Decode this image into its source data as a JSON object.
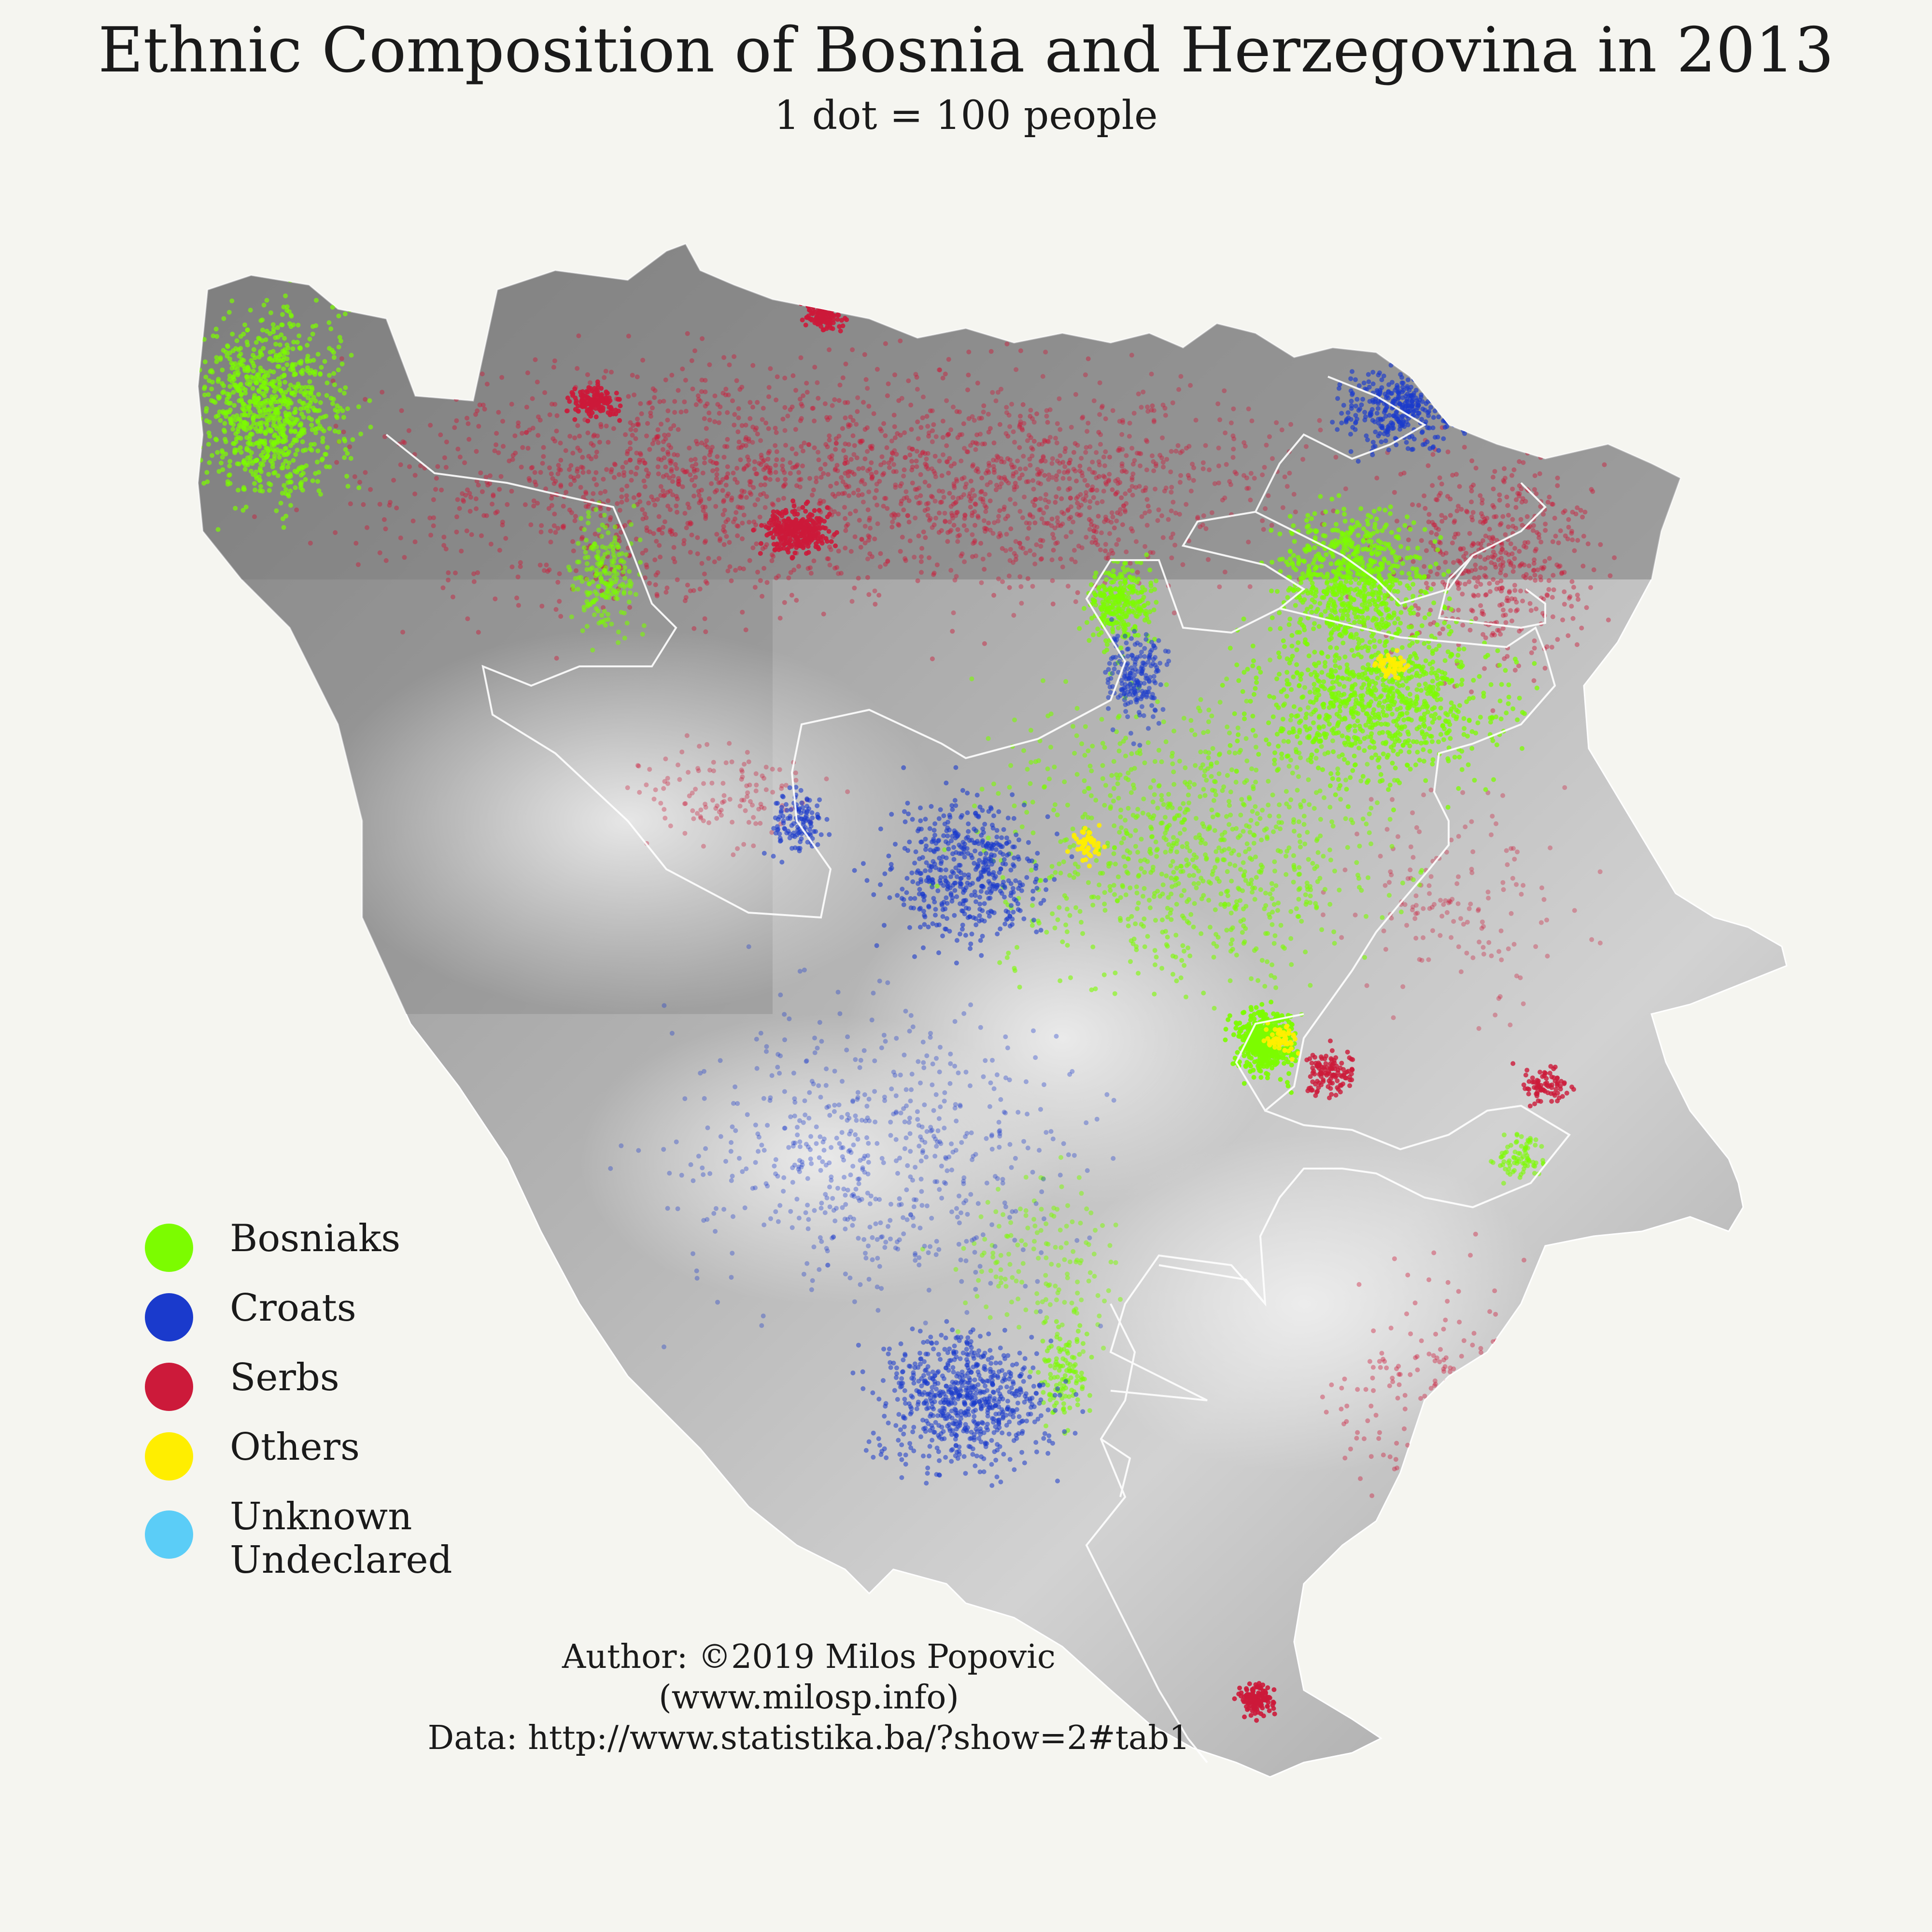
{
  "title": "Ethnic Composition of Bosnia and Herzegovina in 2013",
  "subtitle": "1 dot = 100 people",
  "legend": {
    "items": [
      {
        "label": "Bosniaks",
        "color": "#7cfc00"
      },
      {
        "label": "Croats",
        "color": "#1a3acc"
      },
      {
        "label": "Serbs",
        "color": "#cc1a3a"
      },
      {
        "label": "Others",
        "color": "#ffee00"
      },
      {
        "label": "Unknown\nUndeclared",
        "color": "#5bcdf7"
      }
    ]
  },
  "credits": {
    "author": "Author: ©2019 Milos Popovic",
    "website": "(www.milosp.info)",
    "data_source": "Data: http://www.statistika.ba/?show=2#tab1"
  },
  "map": {
    "country": "Bosnia and Herzegovina",
    "background_color": "#f5f5f0",
    "terrain_color_dark": "#7a7a7a",
    "terrain_color_light": "#e6e6e6",
    "border_color": "#ffffff"
  }
}
